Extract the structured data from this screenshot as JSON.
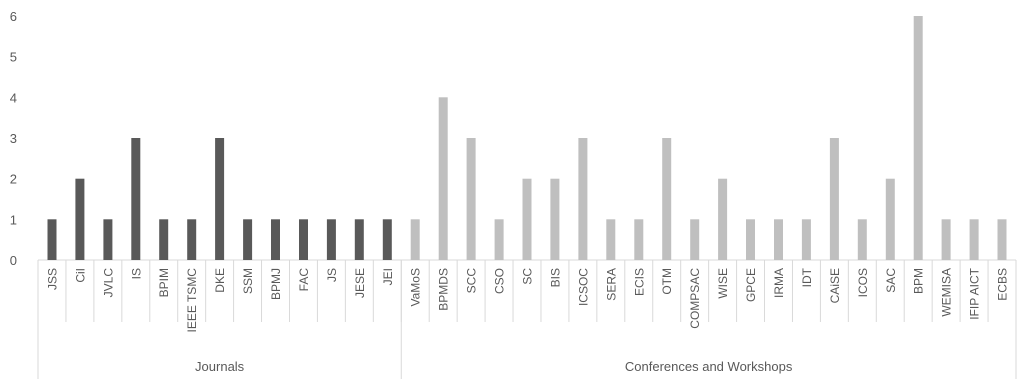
{
  "chart_data": {
    "type": "bar",
    "ylim": [
      0,
      6
    ],
    "yticks": [
      "0",
      "1",
      "2",
      "3",
      "4",
      "5",
      "6"
    ],
    "grid": false,
    "groups": [
      {
        "label": "Journals",
        "color": "#595959",
        "categories": [
          "JSS",
          "CiI",
          "JVLC",
          "IS",
          "BPIM",
          "IEEE TSMC",
          "DKE",
          "SSM",
          "BPMJ",
          "FAC",
          "JS",
          "JESE",
          "JEI"
        ],
        "values": [
          1,
          2,
          1,
          3,
          1,
          1,
          3,
          1,
          1,
          1,
          1,
          1,
          1
        ]
      },
      {
        "label": "Conferences and Workshops",
        "color": "#bfbfbf",
        "categories": [
          "VaMoS",
          "BPMDS",
          "SCC",
          "CSO",
          "SC",
          "BIS",
          "ICSOC",
          "SERA",
          "ECIS",
          "OTM",
          "COMPSAC",
          "WISE",
          "GPCE",
          "IRMA",
          "IDT",
          "CAiSE",
          "ICOS",
          "SAC",
          "BPM",
          "WEMISA",
          "IFIP AICT",
          "ECBS"
        ],
        "values": [
          1,
          4,
          3,
          1,
          2,
          2,
          3,
          1,
          1,
          3,
          1,
          2,
          1,
          1,
          1,
          3,
          1,
          2,
          6,
          1,
          1,
          1
        ]
      }
    ]
  }
}
